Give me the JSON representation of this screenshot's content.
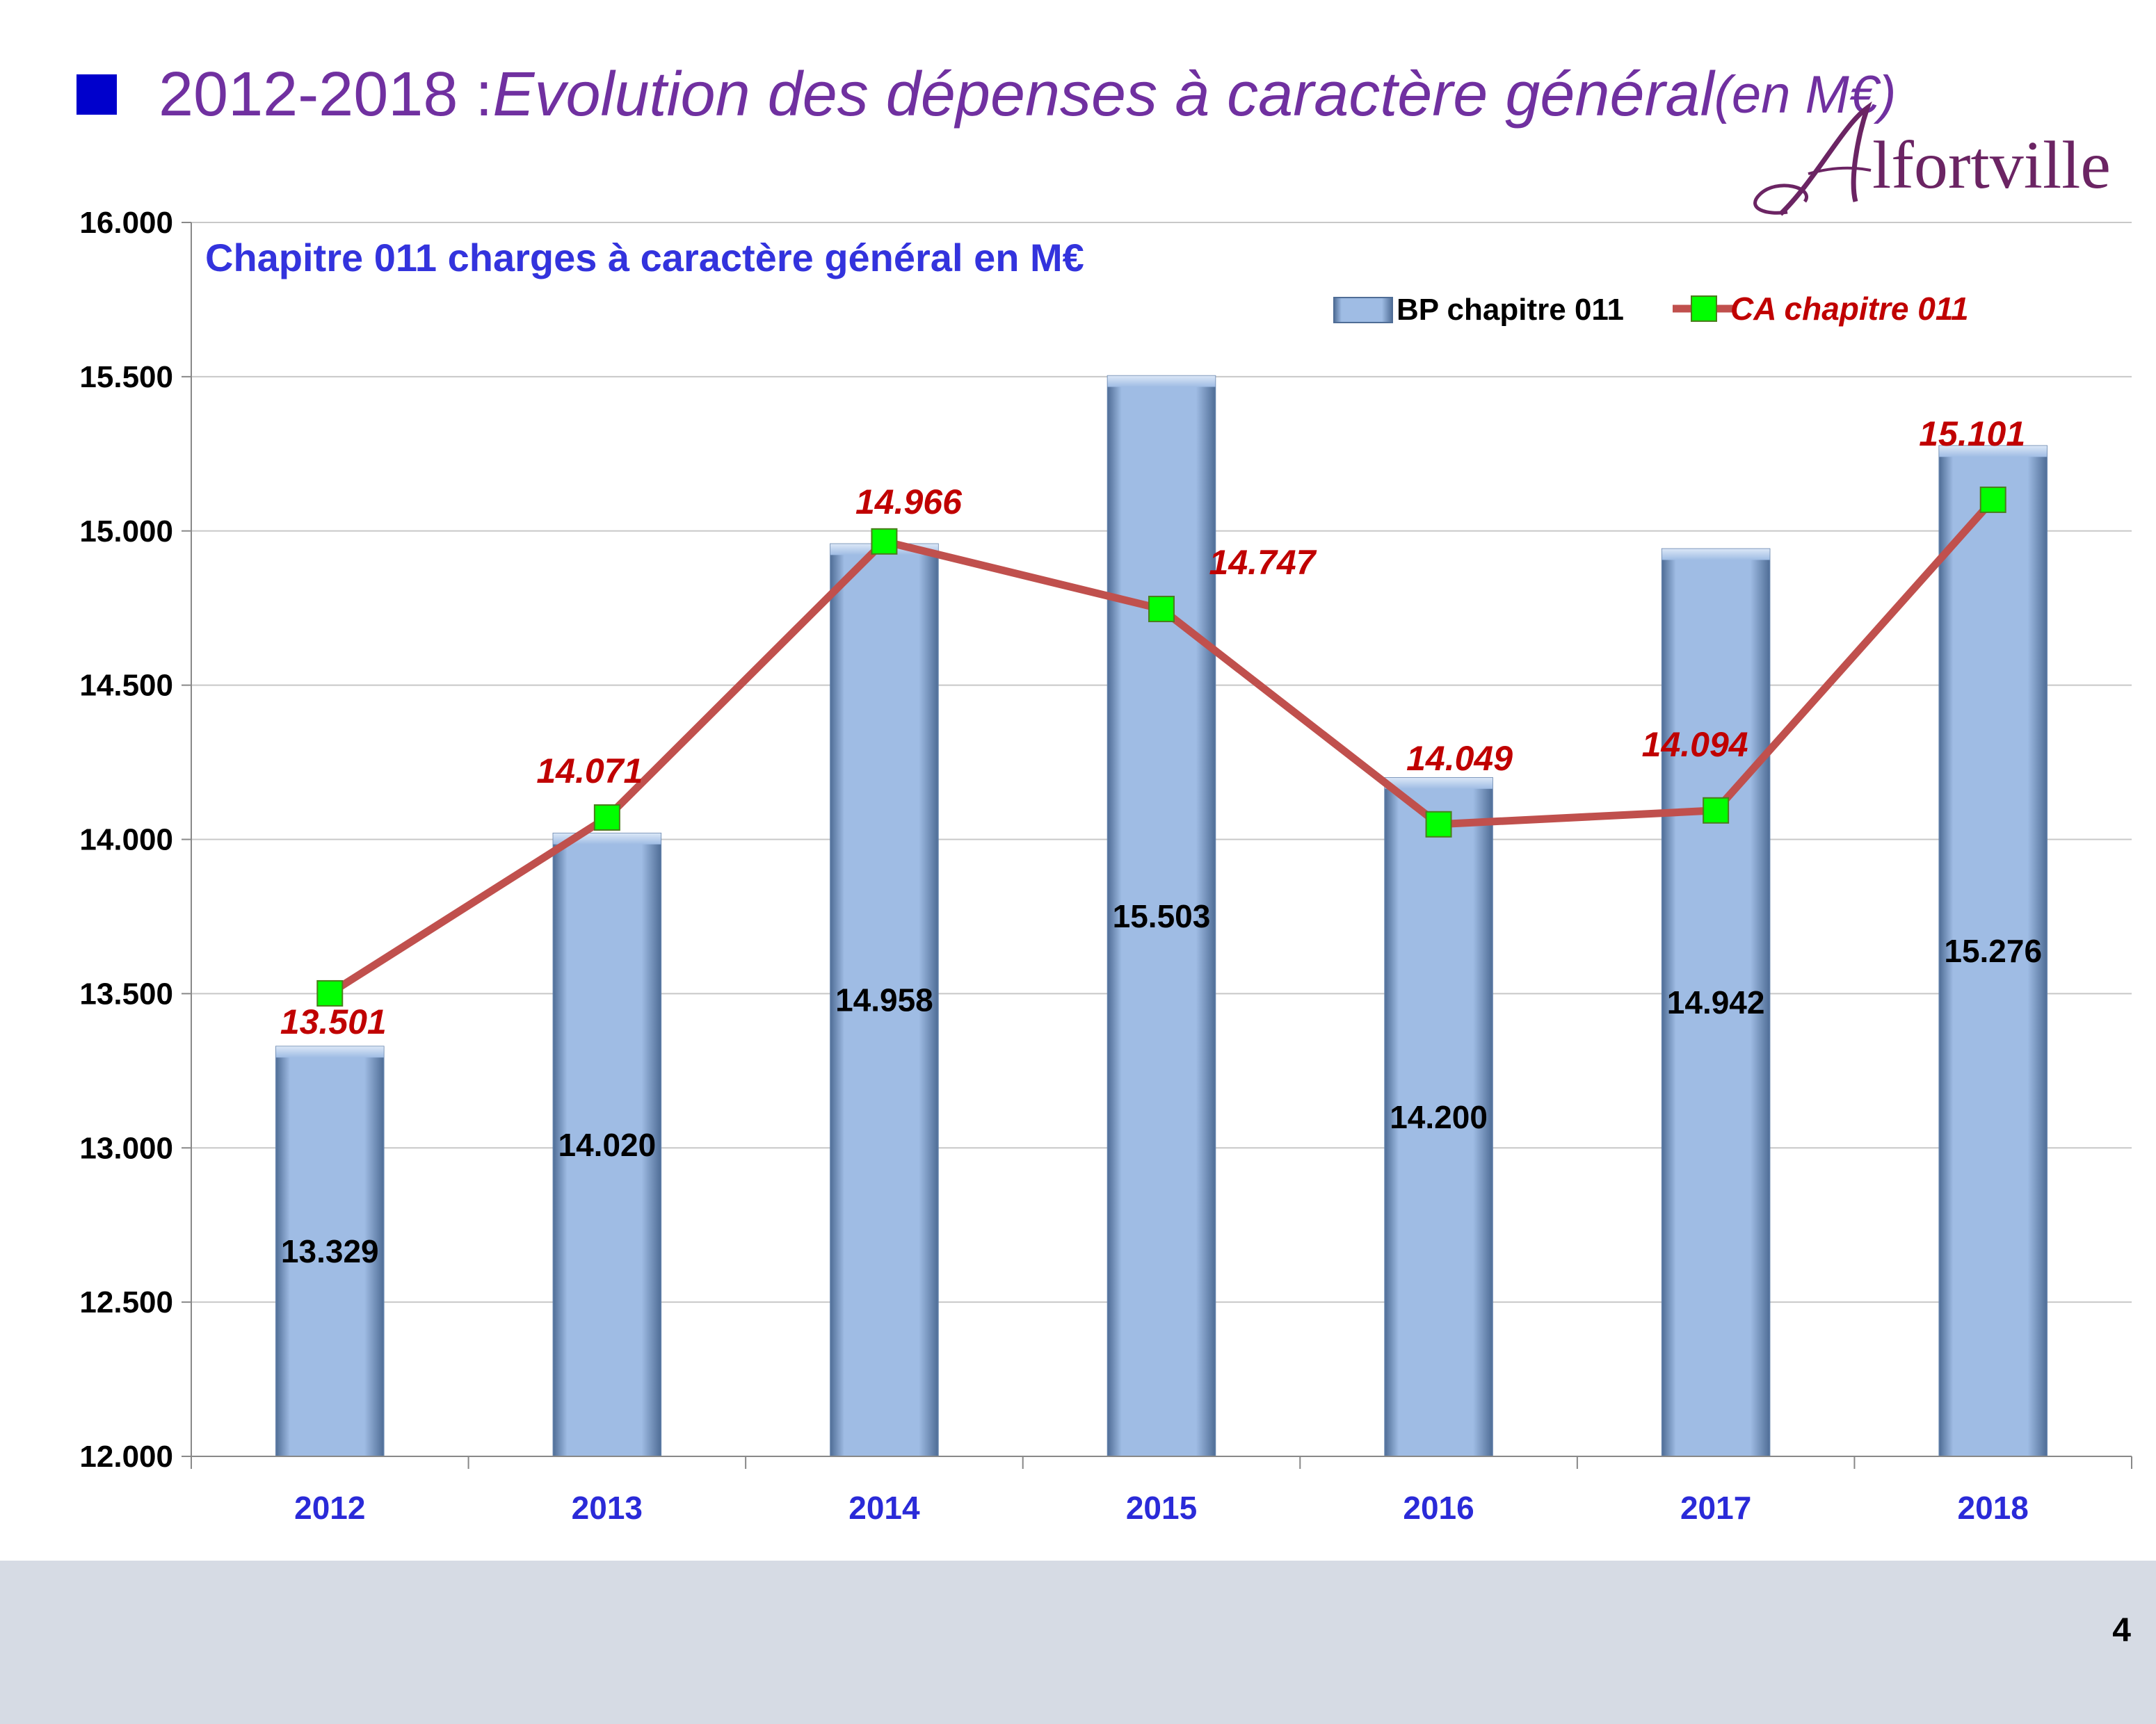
{
  "slide": {
    "title_prefix": "2012-2018 : ",
    "title_italic": "Evolution des dépenses à caractère général",
    "title_unit": " (en M€)",
    "logo_text": "Alfortville",
    "page_number": "4"
  },
  "colors": {
    "title": "#7030a0",
    "bullet": "#0000cc",
    "bar_fill": "#9fbce4",
    "line": "#c0504d",
    "marker": "#00ff00",
    "line_labels": "#c00000",
    "axis_labels": "#2a2ad8",
    "chart_title": "#3333dd",
    "footer": "#d6dbe4"
  },
  "chart_data": {
    "type": "bar",
    "title": "Chapitre 011 charges à caractère général en M€",
    "categories": [
      "2012",
      "2013",
      "2014",
      "2015",
      "2016",
      "2017",
      "2018"
    ],
    "series": [
      {
        "name": "BP chapitre 011",
        "type": "bar",
        "values": [
          13.329,
          14.02,
          14.958,
          15.503,
          14.2,
          14.942,
          15.276
        ],
        "labels": [
          "13.329",
          "14.020",
          "14.958",
          "15.503",
          "14.200",
          "14.942",
          "15.276"
        ]
      },
      {
        "name": "CA chapitre 011",
        "type": "line",
        "values": [
          13.501,
          14.071,
          14.966,
          14.747,
          14.049,
          14.094,
          15.101
        ],
        "labels": [
          "13.501",
          "14.071",
          "14.966",
          "14.747",
          "14.049",
          "14.094",
          "15.101"
        ]
      }
    ],
    "ylim": [
      12.0,
      16.0
    ],
    "yticks": [
      12.0,
      12.5,
      13.0,
      13.5,
      14.0,
      14.5,
      15.0,
      15.5,
      16.0
    ],
    "ytick_labels": [
      "12.000",
      "12.500",
      "13.000",
      "13.500",
      "14.000",
      "14.500",
      "15.000",
      "15.500",
      "16.000"
    ],
    "grid": true,
    "legend": "top-right"
  }
}
